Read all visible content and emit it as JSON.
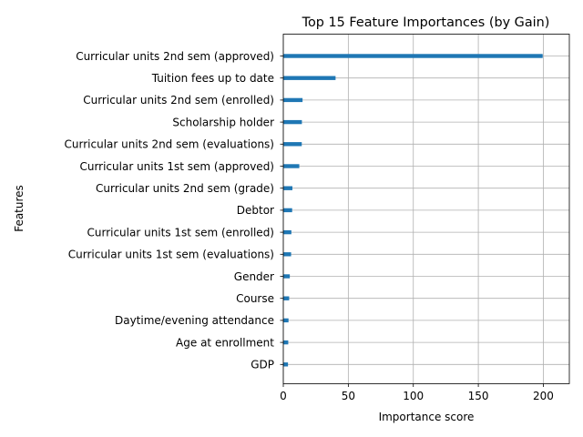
{
  "chart_data": {
    "type": "bar",
    "orientation": "horizontal",
    "title": "Top 15 Feature Importances (by Gain)",
    "xlabel": "Importance score",
    "ylabel": "Features",
    "xlim": [
      0,
      220
    ],
    "xticks": [
      0,
      50,
      100,
      150,
      200
    ],
    "grid": true,
    "categories": [
      "Curricular units 2nd sem (approved)",
      "Tuition fees up to date",
      "Curricular units 2nd sem (enrolled)",
      "Scholarship holder",
      "Curricular units 2nd sem (evaluations)",
      "Curricular units 1st sem (approved)",
      "Curricular units 2nd sem (grade)",
      "Debtor",
      "Curricular units 1st sem (enrolled)",
      "Curricular units 1st sem (evaluations)",
      "Gender",
      "Course",
      "Daytime/evening attendance",
      "Age at enrollment",
      "GDP"
    ],
    "values": [
      199.5,
      40.2,
      14.8,
      14.3,
      14.2,
      12.3,
      7.0,
      6.8,
      6.2,
      6.0,
      5.0,
      4.5,
      4.0,
      3.8,
      3.6
    ],
    "bar_color": "#1f77b4",
    "grid_color": "#b0b0b0"
  }
}
